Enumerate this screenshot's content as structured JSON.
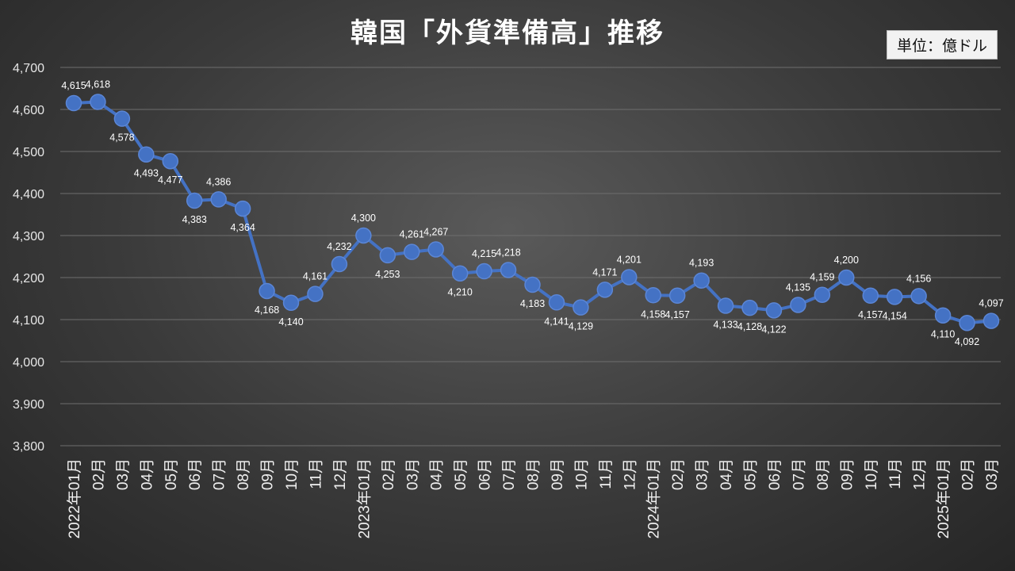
{
  "header": {
    "title": "韓国「外貨準備高」推移",
    "unit": "単位：億ドル"
  },
  "chart_data": {
    "type": "line",
    "title": "韓国「外貨準備高」推移",
    "ylabel": "",
    "xlabel": "",
    "unit": "単位：億ドル",
    "ylim": [
      3800,
      4700
    ],
    "yticks": [
      3800,
      3900,
      4000,
      4100,
      4200,
      4300,
      4400,
      4500,
      4600,
      4700
    ],
    "grid": true,
    "series_color": "#4472c4",
    "categories": [
      "2022年01月",
      "02月",
      "03月",
      "04月",
      "05月",
      "06月",
      "07月",
      "08月",
      "09月",
      "10月",
      "11月",
      "12月",
      "2023年01月",
      "02月",
      "03月",
      "04月",
      "05月",
      "06月",
      "07月",
      "08月",
      "09月",
      "10月",
      "11月",
      "12月",
      "2024年01月",
      "02月",
      "03月",
      "04月",
      "05月",
      "06月",
      "07月",
      "08月",
      "09月",
      "10月",
      "11月",
      "12月",
      "2025年01月",
      "02月",
      "03月"
    ],
    "series": [
      {
        "values": [
          4615,
          4618,
          4578,
          4493,
          4477,
          4383,
          4386,
          4364,
          4168,
          4140,
          4161,
          4232,
          4300,
          4253,
          4261,
          4267,
          4210,
          4215,
          4218,
          4183,
          4141,
          4129,
          4171,
          4201,
          4158,
          4157,
          4193,
          4133,
          4128,
          4122,
          4135,
          4159,
          4200,
          4157,
          4154,
          4156,
          4110,
          4092,
          4097
        ],
        "labels": [
          "4,615",
          "4,618",
          "4,578",
          "4,493",
          "4,477",
          "4,383",
          "4,386",
          "4,364",
          "4,168",
          "4,140",
          "4,161",
          "4,232",
          "4,300",
          "4,253",
          "4,261",
          "4,267",
          "4,210",
          "4,215",
          "4,218",
          "4,183",
          "4,141",
          "4,129",
          "4,171",
          "4,201",
          "4,158",
          "4,157",
          "4,193",
          "4,133",
          "4,128",
          "4,122",
          "4,135",
          "4,159",
          "4,200",
          "4,157",
          "4,154",
          "4,156",
          "4,110",
          "4,092",
          "4,097"
        ]
      }
    ]
  }
}
